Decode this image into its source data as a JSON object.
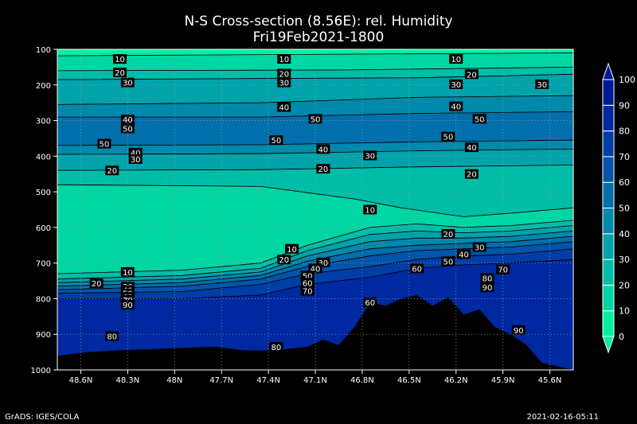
{
  "header": {
    "title": "N-S Cross-section (8.56E): rel. Humidity",
    "subtitle": "Fri19Feb2021-1800"
  },
  "footer": {
    "left": "GrADS: IGES/COLA",
    "right": "2021-02-16-05:11"
  },
  "chart_data": {
    "type": "heatmap",
    "title": "N-S Cross-section (8.56E): rel. Humidity",
    "subtitle": "Fri19Feb2021-1800",
    "x": {
      "tick_labels": [
        "48.6N",
        "48.3N",
        "48N",
        "47.7N",
        "47.4N",
        "47.1N",
        "46.8N",
        "46.5N",
        "46.2N",
        "45.9N",
        "45.6N"
      ],
      "range": [
        48.8,
        45.5
      ]
    },
    "y": {
      "tick_labels": [
        "100",
        "200",
        "300",
        "400",
        "500",
        "600",
        "700",
        "800",
        "900",
        "1000"
      ],
      "range": [
        100,
        1000
      ],
      "inverted": true
    },
    "colorbar": {
      "levels": [
        0,
        10,
        20,
        30,
        40,
        50,
        60,
        70,
        80,
        90,
        100
      ],
      "colors": [
        "#00f0a0",
        "#00d6a4",
        "#00bda8",
        "#00a3aa",
        "#0089ab",
        "#006fab",
        "#0055aa",
        "#003da6",
        "#0028a0",
        "#001996"
      ]
    },
    "layers": [
      {
        "level": 10,
        "upper": [
          [
            48.8,
            118
          ],
          [
            45.5,
            110
          ]
        ],
        "lower": [
          [
            48.8,
            160
          ],
          [
            47.0,
            158
          ],
          [
            45.5,
            150
          ]
        ]
      },
      {
        "level": 20,
        "upper": [
          [
            48.8,
            160
          ],
          [
            47.0,
            158
          ],
          [
            45.5,
            150
          ]
        ],
        "lower": [
          [
            48.8,
            185
          ],
          [
            47.5,
            182
          ],
          [
            46.5,
            180
          ],
          [
            45.5,
            170
          ]
        ]
      },
      {
        "level": 30,
        "upper": [
          [
            48.8,
            185
          ],
          [
            47.5,
            182
          ],
          [
            46.5,
            180
          ],
          [
            45.5,
            170
          ]
        ],
        "lower": [
          [
            48.8,
            255
          ],
          [
            47.5,
            250
          ],
          [
            46.5,
            235
          ],
          [
            45.5,
            230
          ]
        ]
      },
      {
        "level": 40,
        "upper": [
          [
            48.8,
            255
          ],
          [
            47.5,
            250
          ],
          [
            46.5,
            235
          ],
          [
            45.5,
            230
          ]
        ],
        "lower": [
          [
            48.8,
            290
          ],
          [
            47.5,
            290
          ],
          [
            46.5,
            280
          ],
          [
            45.5,
            275
          ]
        ]
      },
      {
        "level": 50,
        "upper": [
          [
            48.8,
            290
          ],
          [
            47.5,
            290
          ],
          [
            46.5,
            280
          ],
          [
            45.5,
            275
          ]
        ],
        "lower": [
          [
            48.8,
            370
          ],
          [
            47.5,
            368
          ],
          [
            46.5,
            360
          ],
          [
            45.5,
            355
          ]
        ]
      },
      {
        "level": 40,
        "upper": [
          [
            48.8,
            370
          ],
          [
            47.5,
            368
          ],
          [
            46.5,
            360
          ],
          [
            45.5,
            355
          ]
        ],
        "lower": [
          [
            48.8,
            395
          ],
          [
            47.5,
            393
          ],
          [
            46.5,
            385
          ],
          [
            45.5,
            380
          ]
        ]
      },
      {
        "level": 30,
        "upper": [
          [
            48.8,
            395
          ],
          [
            47.5,
            393
          ],
          [
            46.5,
            385
          ],
          [
            45.5,
            380
          ]
        ],
        "lower": [
          [
            48.8,
            440
          ],
          [
            47.5,
            438
          ],
          [
            46.5,
            430
          ],
          [
            45.5,
            425
          ]
        ]
      },
      {
        "level": 20,
        "upper": [
          [
            48.8,
            440
          ],
          [
            47.5,
            438
          ],
          [
            46.5,
            430
          ],
          [
            45.5,
            425
          ]
        ],
        "lower": [
          [
            48.8,
            480
          ],
          [
            47.5,
            485
          ],
          [
            46.9,
            520
          ],
          [
            46.6,
            545
          ],
          [
            46.2,
            570
          ],
          [
            45.9,
            560
          ],
          [
            45.5,
            545
          ]
        ]
      },
      {
        "level": 10,
        "upper": [
          [
            48.8,
            480
          ],
          [
            47.5,
            485
          ],
          [
            46.9,
            520
          ],
          [
            46.6,
            545
          ],
          [
            46.2,
            570
          ],
          [
            45.9,
            560
          ],
          [
            45.5,
            545
          ]
        ],
        "lower": [
          [
            48.8,
            730
          ],
          [
            48.0,
            720
          ],
          [
            47.5,
            700
          ],
          [
            47.2,
            650
          ],
          [
            46.8,
            600
          ],
          [
            46.5,
            590
          ],
          [
            46.2,
            600
          ],
          [
            45.9,
            595
          ],
          [
            45.5,
            580
          ]
        ]
      },
      {
        "level": 20,
        "upper": [
          [
            48.8,
            730
          ],
          [
            48.0,
            720
          ],
          [
            47.5,
            700
          ],
          [
            47.2,
            650
          ],
          [
            46.8,
            600
          ],
          [
            46.5,
            590
          ],
          [
            46.2,
            600
          ],
          [
            45.9,
            595
          ],
          [
            45.5,
            580
          ]
        ],
        "lower": [
          [
            48.8,
            745
          ],
          [
            48.0,
            735
          ],
          [
            47.5,
            715
          ],
          [
            47.2,
            665
          ],
          [
            46.8,
            620
          ],
          [
            46.5,
            610
          ],
          [
            46.2,
            615
          ],
          [
            45.9,
            610
          ],
          [
            45.5,
            595
          ]
        ]
      },
      {
        "level": 30,
        "upper": [
          [
            48.8,
            745
          ],
          [
            48.0,
            735
          ],
          [
            47.5,
            715
          ],
          [
            47.2,
            665
          ],
          [
            46.8,
            620
          ],
          [
            46.5,
            610
          ],
          [
            46.2,
            615
          ],
          [
            45.9,
            610
          ],
          [
            45.5,
            595
          ]
        ],
        "lower": [
          [
            48.8,
            755
          ],
          [
            48.0,
            745
          ],
          [
            47.5,
            725
          ],
          [
            47.2,
            680
          ],
          [
            46.8,
            640
          ],
          [
            46.5,
            630
          ],
          [
            46.2,
            630
          ],
          [
            45.9,
            625
          ],
          [
            45.5,
            610
          ]
        ]
      },
      {
        "level": 40,
        "upper": [
          [
            48.8,
            755
          ],
          [
            48.0,
            745
          ],
          [
            47.5,
            725
          ],
          [
            47.2,
            680
          ],
          [
            46.8,
            640
          ],
          [
            46.5,
            630
          ],
          [
            46.2,
            630
          ],
          [
            45.9,
            625
          ],
          [
            45.5,
            610
          ]
        ],
        "lower": [
          [
            48.8,
            765
          ],
          [
            48.0,
            755
          ],
          [
            47.5,
            735
          ],
          [
            47.2,
            695
          ],
          [
            46.8,
            660
          ],
          [
            46.5,
            650
          ],
          [
            46.2,
            645
          ],
          [
            45.9,
            640
          ],
          [
            45.5,
            625
          ]
        ]
      },
      {
        "level": 50,
        "upper": [
          [
            48.8,
            765
          ],
          [
            48.0,
            755
          ],
          [
            47.5,
            735
          ],
          [
            47.2,
            695
          ],
          [
            46.8,
            660
          ],
          [
            46.5,
            650
          ],
          [
            46.2,
            645
          ],
          [
            45.9,
            640
          ],
          [
            45.5,
            625
          ]
        ],
        "lower": [
          [
            48.8,
            775
          ],
          [
            48.0,
            765
          ],
          [
            47.5,
            745
          ],
          [
            47.2,
            710
          ],
          [
            46.8,
            680
          ],
          [
            46.5,
            665
          ],
          [
            46.2,
            660
          ],
          [
            45.9,
            655
          ],
          [
            45.5,
            640
          ]
        ]
      },
      {
        "level": 60,
        "upper": [
          [
            48.8,
            775
          ],
          [
            48.0,
            765
          ],
          [
            47.5,
            745
          ],
          [
            47.2,
            710
          ],
          [
            46.8,
            680
          ],
          [
            46.5,
            665
          ],
          [
            46.2,
            660
          ],
          [
            45.9,
            655
          ],
          [
            45.5,
            640
          ]
        ],
        "lower": [
          [
            48.8,
            785
          ],
          [
            48.0,
            780
          ],
          [
            47.5,
            760
          ],
          [
            47.2,
            730
          ],
          [
            46.8,
            710
          ],
          [
            46.5,
            690
          ],
          [
            46.2,
            680
          ],
          [
            45.9,
            675
          ],
          [
            45.5,
            660
          ]
        ]
      },
      {
        "level": 70,
        "upper": [
          [
            48.8,
            785
          ],
          [
            48.0,
            780
          ],
          [
            47.5,
            760
          ],
          [
            47.2,
            730
          ],
          [
            46.8,
            710
          ],
          [
            46.5,
            690
          ],
          [
            46.2,
            680
          ],
          [
            45.9,
            675
          ],
          [
            45.5,
            660
          ]
        ],
        "lower": [
          [
            48.8,
            800
          ],
          [
            48.0,
            800
          ],
          [
            47.5,
            790
          ],
          [
            47.2,
            760
          ],
          [
            46.8,
            740
          ],
          [
            46.5,
            715
          ],
          [
            46.2,
            705
          ],
          [
            45.9,
            700
          ],
          [
            45.5,
            690
          ]
        ]
      },
      {
        "level": 80,
        "upper": [
          [
            48.8,
            800
          ],
          [
            48.0,
            800
          ],
          [
            47.5,
            790
          ],
          [
            47.2,
            760
          ],
          [
            46.8,
            740
          ],
          [
            46.5,
            715
          ],
          [
            46.2,
            705
          ],
          [
            45.9,
            700
          ],
          [
            45.5,
            690
          ]
        ],
        "lower": [
          [
            48.8,
            1000
          ],
          [
            45.5,
            1000
          ]
        ]
      }
    ],
    "terrain": [
      [
        48.8,
        960
      ],
      [
        48.6,
        950
      ],
      [
        48.4,
        945
      ],
      [
        48.2,
        942
      ],
      [
        48.0,
        938
      ],
      [
        47.8,
        935
      ],
      [
        47.6,
        945
      ],
      [
        47.4,
        945
      ],
      [
        47.2,
        935
      ],
      [
        47.1,
        915
      ],
      [
        47.0,
        930
      ],
      [
        46.9,
        880
      ],
      [
        46.8,
        810
      ],
      [
        46.7,
        820
      ],
      [
        46.6,
        800
      ],
      [
        46.5,
        790
      ],
      [
        46.4,
        820
      ],
      [
        46.3,
        795
      ],
      [
        46.2,
        845
      ],
      [
        46.1,
        830
      ],
      [
        46.0,
        880
      ],
      [
        45.9,
        900
      ],
      [
        45.8,
        930
      ],
      [
        45.7,
        980
      ],
      [
        45.6,
        990
      ],
      [
        45.5,
        1000
      ]
    ],
    "contour_labels": [
      {
        "text": "10",
        "x": 48.4,
        "p": 127
      },
      {
        "text": "10",
        "x": 47.35,
        "p": 127
      },
      {
        "text": "10",
        "x": 46.25,
        "p": 127
      },
      {
        "text": "20",
        "x": 48.4,
        "p": 165
      },
      {
        "text": "20",
        "x": 47.35,
        "p": 168
      },
      {
        "text": "20",
        "x": 46.15,
        "p": 170
      },
      {
        "text": "30",
        "x": 48.35,
        "p": 193
      },
      {
        "text": "30",
        "x": 47.35,
        "p": 193
      },
      {
        "text": "30",
        "x": 46.25,
        "p": 198
      },
      {
        "text": "30",
        "x": 45.7,
        "p": 198
      },
      {
        "text": "40",
        "x": 48.35,
        "p": 297
      },
      {
        "text": "40",
        "x": 47.35,
        "p": 262
      },
      {
        "text": "40",
        "x": 46.25,
        "p": 260
      },
      {
        "text": "50",
        "x": 48.35,
        "p": 322
      },
      {
        "text": "50",
        "x": 47.15,
        "p": 295
      },
      {
        "text": "50",
        "x": 46.1,
        "p": 295
      },
      {
        "text": "50",
        "x": 48.5,
        "p": 365
      },
      {
        "text": "50",
        "x": 47.4,
        "p": 355
      },
      {
        "text": "50",
        "x": 46.3,
        "p": 345
      },
      {
        "text": "40",
        "x": 48.3,
        "p": 390
      },
      {
        "text": "40",
        "x": 47.1,
        "p": 380
      },
      {
        "text": "40",
        "x": 46.15,
        "p": 375
      },
      {
        "text": "30",
        "x": 48.3,
        "p": 408
      },
      {
        "text": "30",
        "x": 46.8,
        "p": 398
      },
      {
        "text": "20",
        "x": 48.45,
        "p": 440
      },
      {
        "text": "20",
        "x": 47.1,
        "p": 435
      },
      {
        "text": "20",
        "x": 46.15,
        "p": 450
      },
      {
        "text": "10",
        "x": 46.8,
        "p": 550
      },
      {
        "text": "20",
        "x": 46.3,
        "p": 618
      },
      {
        "text": "30",
        "x": 46.1,
        "p": 655
      },
      {
        "text": "10",
        "x": 47.3,
        "p": 660
      },
      {
        "text": "20",
        "x": 47.35,
        "p": 690
      },
      {
        "text": "30",
        "x": 47.1,
        "p": 698
      },
      {
        "text": "40",
        "x": 47.15,
        "p": 715
      },
      {
        "text": "50",
        "x": 47.2,
        "p": 735
      },
      {
        "text": "60",
        "x": 47.2,
        "p": 755
      },
      {
        "text": "70",
        "x": 47.2,
        "p": 778
      },
      {
        "text": "40",
        "x": 46.2,
        "p": 675
      },
      {
        "text": "50",
        "x": 46.3,
        "p": 695
      },
      {
        "text": "60",
        "x": 46.5,
        "p": 715
      },
      {
        "text": "70",
        "x": 45.95,
        "p": 718
      },
      {
        "text": "80",
        "x": 46.05,
        "p": 742
      },
      {
        "text": "90",
        "x": 46.05,
        "p": 768
      },
      {
        "text": "10",
        "x": 48.35,
        "p": 725
      },
      {
        "text": "20",
        "x": 48.55,
        "p": 757
      },
      {
        "text": "30",
        "x": 48.35,
        "p": 766
      },
      {
        "text": "40",
        "x": 48.35,
        "p": 776
      },
      {
        "text": "50",
        "x": 48.35,
        "p": 785
      },
      {
        "text": "60",
        "x": 48.35,
        "p": 795
      },
      {
        "text": "70",
        "x": 48.35,
        "p": 803
      },
      {
        "text": "90",
        "x": 48.35,
        "p": 817
      },
      {
        "text": "60",
        "x": 46.8,
        "p": 810
      },
      {
        "text": "80",
        "x": 48.45,
        "p": 905
      },
      {
        "text": "80",
        "x": 47.4,
        "p": 935
      },
      {
        "text": "90",
        "x": 45.85,
        "p": 888
      }
    ]
  }
}
